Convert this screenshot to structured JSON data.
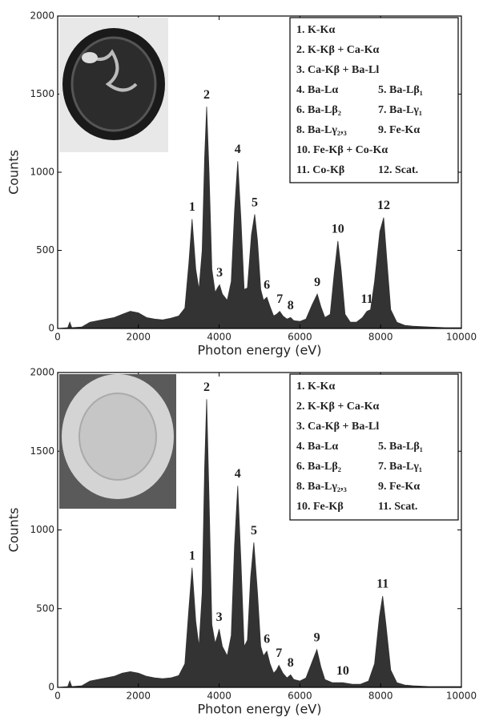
{
  "chart_data": [
    {
      "type": "area",
      "xlabel": "Photon energy (eV)",
      "ylabel": "Counts",
      "color": "#333333",
      "xlim": [
        0,
        10000
      ],
      "xticks": [
        0,
        2000,
        4000,
        6000,
        8000,
        10000
      ],
      "ylim": [
        0,
        2000
      ],
      "yticks": [
        0,
        500,
        1000,
        1500,
        2000
      ],
      "x": [
        0,
        250,
        300,
        350,
        600,
        800,
        1000,
        1200,
        1400,
        1600,
        1800,
        2000,
        2200,
        2400,
        2600,
        2800,
        3000,
        3150,
        3250,
        3330,
        3420,
        3500,
        3580,
        3640,
        3690,
        3750,
        3820,
        3900,
        3960,
        4010,
        4080,
        4200,
        4300,
        4380,
        4460,
        4540,
        4620,
        4700,
        4800,
        4880,
        4950,
        5030,
        5100,
        5180,
        5260,
        5350,
        5420,
        5500,
        5580,
        5680,
        5770,
        5850,
        6000,
        6150,
        6300,
        6430,
        6520,
        6620,
        6750,
        6850,
        6940,
        7020,
        7120,
        7250,
        7400,
        7550,
        7660,
        7750,
        7850,
        7980,
        8075,
        8150,
        8250,
        8400,
        8600,
        8800,
        9200,
        9600,
        10000
      ],
      "values": [
        0,
        5,
        40,
        5,
        10,
        40,
        50,
        60,
        70,
        90,
        110,
        100,
        70,
        60,
        55,
        65,
        80,
        130,
        420,
        700,
        380,
        250,
        500,
        1100,
        1420,
        1000,
        380,
        230,
        260,
        280,
        220,
        180,
        300,
        750,
        1070,
        700,
        250,
        260,
        600,
        730,
        560,
        250,
        180,
        200,
        140,
        80,
        90,
        110,
        80,
        60,
        70,
        50,
        45,
        60,
        150,
        220,
        140,
        70,
        90,
        350,
        560,
        380,
        90,
        40,
        40,
        70,
        110,
        120,
        300,
        620,
        710,
        450,
        120,
        40,
        20,
        15,
        10,
        5,
        5
      ],
      "annotations": [
        {
          "text": "1",
          "x": 3330,
          "y": 700
        },
        {
          "text": "2",
          "x": 3690,
          "y": 1420
        },
        {
          "text": "3",
          "x": 4010,
          "y": 280
        },
        {
          "text": "4",
          "x": 4460,
          "y": 1070
        },
        {
          "text": "5",
          "x": 4880,
          "y": 730
        },
        {
          "text": "6",
          "x": 5180,
          "y": 200
        },
        {
          "text": "7",
          "x": 5500,
          "y": 110
        },
        {
          "text": "8",
          "x": 5770,
          "y": 70
        },
        {
          "text": "9",
          "x": 6430,
          "y": 220
        },
        {
          "text": "10",
          "x": 6940,
          "y": 560
        },
        {
          "text": "11",
          "x": 7660,
          "y": 110
        },
        {
          "text": "12",
          "x": 8075,
          "y": 710
        }
      ],
      "legend": [
        [
          "1. K-Kα"
        ],
        [
          "2. K-Kβ + Ca-Kα"
        ],
        [
          "3. Ca-Kβ + Ba-Ll"
        ],
        [
          "4. Ba-Lα",
          "5. Ba-Lβ₁"
        ],
        [
          "6. Ba-Lβ₂",
          "7. Ba-Lγ₁"
        ],
        [
          "8. Ba-Lγ₂,₃",
          "9. Fe-Kα"
        ],
        [
          "10. Fe-Kβ + Co-Kα"
        ],
        [
          "11. Co-Kβ",
          "12. Scat."
        ]
      ]
    },
    {
      "type": "area",
      "xlabel": "Photon energy (eV)",
      "ylabel": "Counts",
      "color": "#333333",
      "xlim": [
        0,
        10000
      ],
      "xticks": [
        0,
        2000,
        4000,
        6000,
        8000,
        10000
      ],
      "ylim": [
        0,
        2000
      ],
      "yticks": [
        0,
        500,
        1000,
        1500,
        2000
      ],
      "x": [
        0,
        250,
        300,
        350,
        600,
        800,
        1000,
        1200,
        1400,
        1600,
        1800,
        2000,
        2200,
        2400,
        2600,
        2800,
        3000,
        3150,
        3250,
        3330,
        3420,
        3500,
        3580,
        3640,
        3690,
        3750,
        3820,
        3900,
        3960,
        4000,
        4080,
        4200,
        4300,
        4380,
        4460,
        4540,
        4620,
        4700,
        4780,
        4860,
        4950,
        5030,
        5100,
        5180,
        5260,
        5350,
        5420,
        5480,
        5580,
        5680,
        5770,
        5850,
        6000,
        6150,
        6300,
        6420,
        6520,
        6620,
        6800,
        7060,
        7300,
        7500,
        7700,
        7850,
        7970,
        8050,
        8130,
        8250,
        8400,
        8600,
        8800,
        9200,
        9600,
        10000
      ],
      "values": [
        0,
        5,
        40,
        5,
        10,
        40,
        50,
        60,
        70,
        90,
        100,
        90,
        70,
        60,
        55,
        60,
        75,
        150,
        500,
        760,
        420,
        260,
        600,
        1400,
        1830,
        1200,
        400,
        280,
        330,
        370,
        260,
        200,
        330,
        900,
        1280,
        800,
        260,
        300,
        700,
        920,
        600,
        260,
        200,
        230,
        150,
        90,
        110,
        140,
        90,
        60,
        80,
        50,
        40,
        60,
        160,
        240,
        130,
        50,
        30,
        30,
        20,
        20,
        40,
        150,
        450,
        580,
        400,
        110,
        30,
        15,
        10,
        5,
        5,
        5
      ],
      "annotations": [
        {
          "text": "1",
          "x": 3330,
          "y": 760
        },
        {
          "text": "2",
          "x": 3690,
          "y": 1830
        },
        {
          "text": "3",
          "x": 4000,
          "y": 370
        },
        {
          "text": "4",
          "x": 4460,
          "y": 1280
        },
        {
          "text": "5",
          "x": 4860,
          "y": 920
        },
        {
          "text": "6",
          "x": 5180,
          "y": 230
        },
        {
          "text": "7",
          "x": 5480,
          "y": 140
        },
        {
          "text": "8",
          "x": 5770,
          "y": 80
        },
        {
          "text": "9",
          "x": 6420,
          "y": 240
        },
        {
          "text": "10",
          "x": 7060,
          "y": 30
        },
        {
          "text": "11",
          "x": 8050,
          "y": 580
        }
      ],
      "legend": [
        [
          "1. K-Kα"
        ],
        [
          "2. K-Kβ + Ca-Kα"
        ],
        [
          "3. Ca-Kβ + Ba-Ll"
        ],
        [
          "4. Ba-Lα",
          "5. Ba-Lβ₁"
        ],
        [
          "6. Ba-Lβ₂",
          "7. Ba-Lγ₁"
        ],
        [
          "8. Ba-Lγ₂,₃",
          "9. Fe-Kα"
        ],
        [
          "10. Fe-Kβ",
          "11. Scat."
        ]
      ]
    }
  ]
}
